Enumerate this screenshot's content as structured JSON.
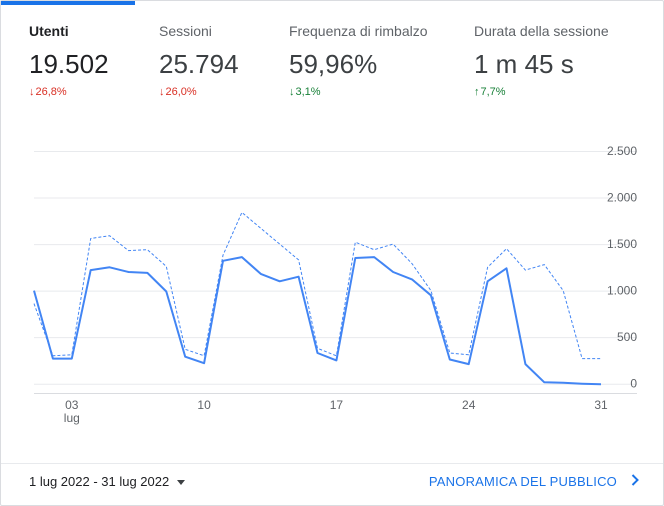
{
  "metrics": [
    {
      "label": "Utenti",
      "value": "19.502",
      "change": "26,8%",
      "direction": "down"
    },
    {
      "label": "Sessioni",
      "value": "25.794",
      "change": "26,0%",
      "direction": "down"
    },
    {
      "label": "Frequenza di rimbalzo",
      "value": "59,96%",
      "change": "3,1%",
      "direction": "down"
    },
    {
      "label": "Durata della sessione",
      "value": "1 m 45 s",
      "change": "7,7%",
      "direction": "up"
    }
  ],
  "colors": {
    "accent": "#1a73e8",
    "current_series": "#4285f4",
    "negative": "#d93025",
    "positive": "#188038",
    "grid": "#e8eaed"
  },
  "chart_data": {
    "type": "line",
    "x": [
      1,
      2,
      3,
      4,
      5,
      6,
      7,
      8,
      9,
      10,
      11,
      12,
      13,
      14,
      15,
      16,
      17,
      18,
      19,
      20,
      21,
      22,
      23,
      24,
      25,
      26,
      27,
      28,
      29,
      30,
      31
    ],
    "x_tick_values": [
      3,
      10,
      17,
      24,
      31
    ],
    "x_tick_labels": [
      "03",
      "10",
      "17",
      "24",
      "31"
    ],
    "x_sublabel": "lug",
    "y_tick_values": [
      0,
      500,
      1000,
      1500,
      2000,
      2500
    ],
    "y_tick_labels": [
      "0",
      "500",
      "1.000",
      "1.500",
      "2.000",
      "2.500"
    ],
    "ylim": [
      -100,
      2500
    ],
    "grid": true,
    "series": [
      {
        "style": "solid",
        "values": [
          1000,
          270,
          270,
          1220,
          1250,
          1200,
          1190,
          990,
          290,
          220,
          1320,
          1360,
          1180,
          1100,
          1150,
          330,
          250,
          1350,
          1360,
          1200,
          1120,
          950,
          260,
          210,
          1100,
          1240,
          210,
          15,
          10,
          0,
          -5
        ]
      },
      {
        "style": "dashed",
        "values": [
          860,
          300,
          310,
          1560,
          1590,
          1430,
          1440,
          1260,
          370,
          300,
          1380,
          1840,
          1670,
          1500,
          1330,
          380,
          300,
          1520,
          1440,
          1500,
          1290,
          1000,
          330,
          310,
          1250,
          1450,
          1220,
          1280,
          1000,
          270,
          270
        ]
      }
    ]
  },
  "footer": {
    "date_range": "1 lug 2022 - 31 lug 2022",
    "overview_link": "PANORAMICA DEL PUBBLICO"
  }
}
